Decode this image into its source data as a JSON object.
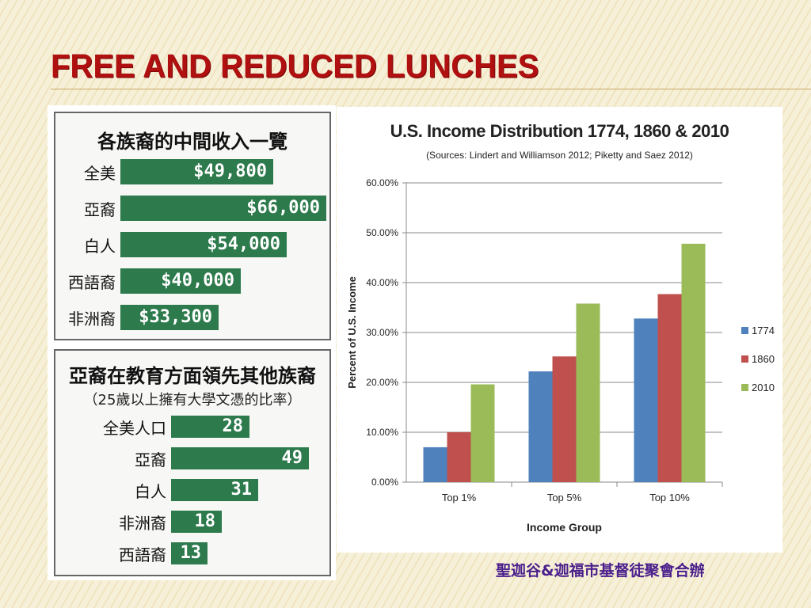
{
  "slide": {
    "title": "FREE AND REDUCED LUNCHES",
    "credit": "聖迦谷&迦福市基督徒聚會合辦"
  },
  "income_table": {
    "title": "各族裔的中間收入一覽",
    "rows": [
      {
        "label": "全美",
        "value": "$49,800",
        "amount": 49800
      },
      {
        "label": "亞裔",
        "value": "$66,000",
        "amount": 66000
      },
      {
        "label": "白人",
        "value": "$54,000",
        "amount": 54000
      },
      {
        "label": "西語裔",
        "value": "$40,000",
        "amount": 40000
      },
      {
        "label": "非洲裔",
        "value": "$33,300",
        "amount": 33300
      }
    ],
    "bar_color": "#2d7a4c"
  },
  "education_table": {
    "title": "亞裔在教育方面領先其他族裔",
    "subtitle": "（25歲以上擁有大學文憑的比率）",
    "rows": [
      {
        "label": "全美人口",
        "value": "28",
        "amount": 28
      },
      {
        "label": "亞裔",
        "value": "49",
        "amount": 49
      },
      {
        "label": "白人",
        "value": "31",
        "amount": 31
      },
      {
        "label": "非洲裔",
        "value": "18",
        "amount": 18
      },
      {
        "label": "西語裔",
        "value": "13",
        "amount": 13
      }
    ],
    "bar_color": "#2d7a4c"
  },
  "chart_data": {
    "type": "bar",
    "title": "U.S. Income Distribution 1774, 1860 & 2010",
    "subtitle": "(Sources: Lindert and Williamson 2012; Piketty and Saez 2012)",
    "xlabel": "Income Group",
    "ylabel": "Percent of U.S. Income",
    "categories": [
      "Top 1%",
      "Top 5%",
      "Top 10%"
    ],
    "series": [
      {
        "name": "1774",
        "color": "#4f81bd",
        "values": [
          7.0,
          22.2,
          32.8
        ]
      },
      {
        "name": "1860",
        "color": "#c0504d",
        "values": [
          10.0,
          25.2,
          37.7
        ]
      },
      {
        "name": "2010",
        "color": "#9bbb59",
        "values": [
          19.6,
          35.8,
          47.8
        ]
      }
    ],
    "ylim": [
      0,
      60
    ],
    "yticks": [
      "0.00%",
      "10.00%",
      "20.00%",
      "30.00%",
      "40.00%",
      "50.00%",
      "60.00%"
    ],
    "grid": true,
    "legend": "right"
  }
}
